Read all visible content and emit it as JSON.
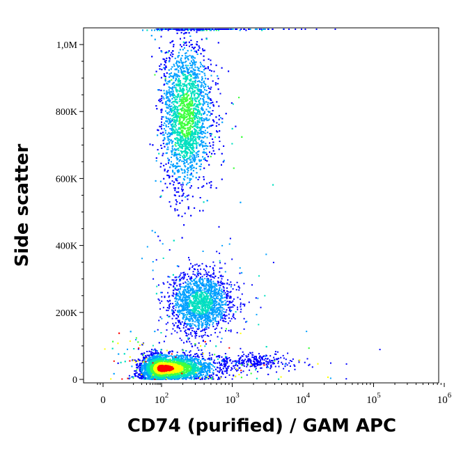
{
  "chart_data": {
    "type": "scatter",
    "subtype": "flow cytometry density dot plot (pseudocolor)",
    "xlabel": "CD74 (purified) / GAM APC",
    "ylabel": "Side scatter",
    "x_scale": "biexponential (log with linear region near 0)",
    "y_scale": "linear",
    "xlim": [
      -30,
      1000000
    ],
    "ylim": [
      -5000,
      1050000
    ],
    "x_ticks": [
      {
        "value": 0,
        "base": "0",
        "exp": ""
      },
      {
        "value": 100,
        "base": "10",
        "exp": "2"
      },
      {
        "value": 1000,
        "base": "10",
        "exp": "3"
      },
      {
        "value": 10000,
        "base": "10",
        "exp": "4"
      },
      {
        "value": 100000,
        "base": "10",
        "exp": "5"
      },
      {
        "value": 1000000,
        "base": "10",
        "exp": "6"
      }
    ],
    "y_ticks": [
      {
        "value": 0,
        "label": "0"
      },
      {
        "value": 200000,
        "label": "200K"
      },
      {
        "value": 400000,
        "label": "400K"
      },
      {
        "value": 600000,
        "label": "600K"
      },
      {
        "value": 800000,
        "label": "800K"
      },
      {
        "value": 1000000,
        "label": "1,0M"
      }
    ],
    "density_colors": [
      "#0000ff",
      "#00a0ff",
      "#00e0c0",
      "#40ff40",
      "#ffff00",
      "#ff0000"
    ],
    "populations": [
      {
        "name_visible": false,
        "x_center": 100,
        "y_center": 35000,
        "x_spread_decades": 0.35,
        "y_spread": 20000,
        "count": 5200,
        "peak_density": "red"
      },
      {
        "name_visible": false,
        "x_center": 220,
        "y_center": 790000,
        "x_spread_decades": 0.18,
        "y_spread": 110000,
        "count": 4200,
        "peak_density": "green"
      },
      {
        "name_visible": false,
        "x_center": 350,
        "y_center": 230000,
        "x_spread_decades": 0.22,
        "y_spread": 45000,
        "count": 1800,
        "peak_density": "cyan"
      },
      {
        "name_visible": false,
        "x_center": 2000,
        "y_center": 55000,
        "x_spread_decades": 0.3,
        "y_spread": 12000,
        "count": 300,
        "peak_density": "blue"
      }
    ],
    "grid": false,
    "legend": "none"
  }
}
